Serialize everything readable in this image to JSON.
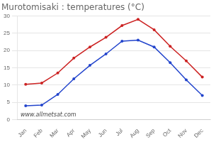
{
  "chart_data": {
    "type": "line",
    "title": "Murotomisaki : temperatures (°C)",
    "categories": [
      "Jan",
      "Feb",
      "Mar",
      "Apr",
      "May",
      "Jun",
      "Jul",
      "Aug",
      "Sep",
      "Oct",
      "Nov",
      "Dec"
    ],
    "series": [
      {
        "color": "#cc2222",
        "values": [
          10.2,
          10.6,
          13.5,
          17.8,
          21.0,
          23.8,
          27.2,
          29.0,
          26.0,
          21.2,
          17.0,
          12.3
        ]
      },
      {
        "color": "#2244cc",
        "values": [
          4.0,
          4.2,
          7.3,
          11.8,
          15.7,
          19.0,
          22.7,
          23.0,
          21.0,
          16.5,
          11.5,
          7.0
        ]
      }
    ],
    "marker": "circle",
    "line_style": "solid",
    "ylim": [
      0,
      30
    ],
    "yticks": [
      0,
      5,
      10,
      15,
      20,
      25,
      30
    ],
    "grid": true,
    "annotations": [
      "www.allmetsat.com"
    ]
  }
}
